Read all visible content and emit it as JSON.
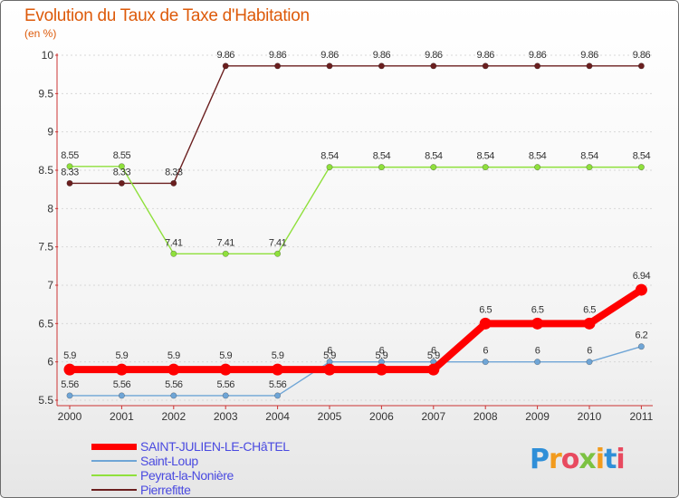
{
  "header": {
    "title": "Evolution du Taux de Taxe d'Habitation",
    "unit": "(en %)"
  },
  "chart_data": {
    "type": "line",
    "title": "Evolution du Taux de Taxe d'Habitation",
    "ylabel": "(en %)",
    "xlabel": "",
    "ylim": [
      5.5,
      10
    ],
    "yticks": [
      "5.5",
      "6",
      "6.5",
      "7",
      "7.5",
      "8",
      "8.5",
      "9",
      "9.5",
      "10"
    ],
    "categories": [
      "2000",
      "2001",
      "2002",
      "2003",
      "2004",
      "2005",
      "2006",
      "2007",
      "2008",
      "2009",
      "2010",
      "2011"
    ],
    "series": [
      {
        "name": "Pierrefitte",
        "color": "#6b1f1f",
        "values": [
          8.33,
          8.33,
          8.33,
          9.86,
          9.86,
          9.86,
          9.86,
          9.86,
          9.86,
          9.86,
          9.86,
          9.86
        ],
        "labels": [
          "8.33",
          "8.33",
          "8.33",
          "9.86",
          "9.86",
          "9.86",
          "9.86",
          "9.86",
          "9.86",
          "9.86",
          "9.86",
          "9.86"
        ]
      },
      {
        "name": "Peyrat-la-Nonière",
        "color": "#8fe03c",
        "values": [
          8.55,
          8.55,
          7.41,
          7.41,
          7.41,
          8.54,
          8.54,
          8.54,
          8.54,
          8.54,
          8.54,
          8.54
        ],
        "labels": [
          "8.55",
          "8.55",
          "7.41",
          "7.41",
          "7.41",
          "8.54",
          "8.54",
          "8.54",
          "8.54",
          "8.54",
          "8.54",
          "8.54"
        ]
      },
      {
        "name": "Saint-Loup",
        "color": "#6fa5d6",
        "values": [
          5.56,
          5.56,
          5.56,
          5.56,
          5.56,
          6,
          6,
          6,
          6,
          6,
          6,
          6.2
        ],
        "labels": [
          "5.56",
          "5.56",
          "5.56",
          "5.56",
          "5.56",
          "6",
          "6",
          "6",
          "6",
          "6",
          "6",
          "6.2"
        ]
      },
      {
        "name": "SAINT-JULIEN-LE-CHâTEL",
        "color": "#ff0000",
        "values": [
          5.9,
          5.9,
          5.9,
          5.9,
          5.9,
          5.9,
          5.9,
          5.9,
          6.5,
          6.5,
          6.5,
          6.94
        ],
        "labels": [
          "5.9",
          "5.9",
          "5.9",
          "5.9",
          "5.9",
          "5.9",
          "5.9",
          "5.9",
          "6.5",
          "6.5",
          "6.5",
          "6.94"
        ]
      }
    ],
    "legend": [
      "SAINT-JULIEN-LE-CHâTEL",
      "Saint-Loup",
      "Peyrat-la-Nonière",
      "Pierrefitte"
    ]
  },
  "logo": {
    "letters": [
      "P",
      "r",
      "o",
      "x",
      "i",
      "t",
      "i"
    ],
    "colors": [
      "#2f8fd8",
      "#f29b1d",
      "#e84a5f",
      "#7cc242",
      "#f29b1d",
      "#2f8fd8",
      "#e84a5f"
    ]
  }
}
